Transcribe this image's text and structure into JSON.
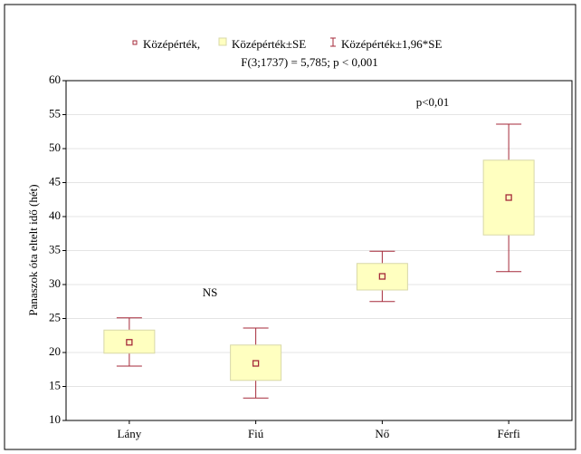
{
  "chart_data": {
    "type": "interval",
    "subtitle": "F(3;1737) = 5,785; p < 0,001",
    "y_label": "Panaszok óta eltelt idő (hét)",
    "categories": [
      "Lány",
      "Fiú",
      "Nő",
      "Férfi"
    ],
    "series": [
      {
        "name": "Középérték,",
        "color": "#a52a3a",
        "values": [
          21.5,
          18.4,
          31.2,
          42.8
        ]
      },
      {
        "name": "Középérték±SE",
        "color": "#ffffc0",
        "lower": [
          19.9,
          15.9,
          29.2,
          37.3
        ],
        "upper": [
          23.3,
          21.1,
          33.1,
          48.3
        ]
      },
      {
        "name": "Középérték±1,96*SE",
        "color": "#a52a3a",
        "lower": [
          18.0,
          13.3,
          27.5,
          31.9
        ],
        "upper": [
          25.1,
          23.6,
          34.9,
          53.6
        ]
      }
    ],
    "annotations": [
      "NS",
      "p<0,01"
    ],
    "ylim": [
      10,
      60
    ],
    "yticks": [
      10,
      15,
      20,
      25,
      30,
      35,
      40,
      45,
      50,
      55,
      60
    ],
    "grid": true
  }
}
